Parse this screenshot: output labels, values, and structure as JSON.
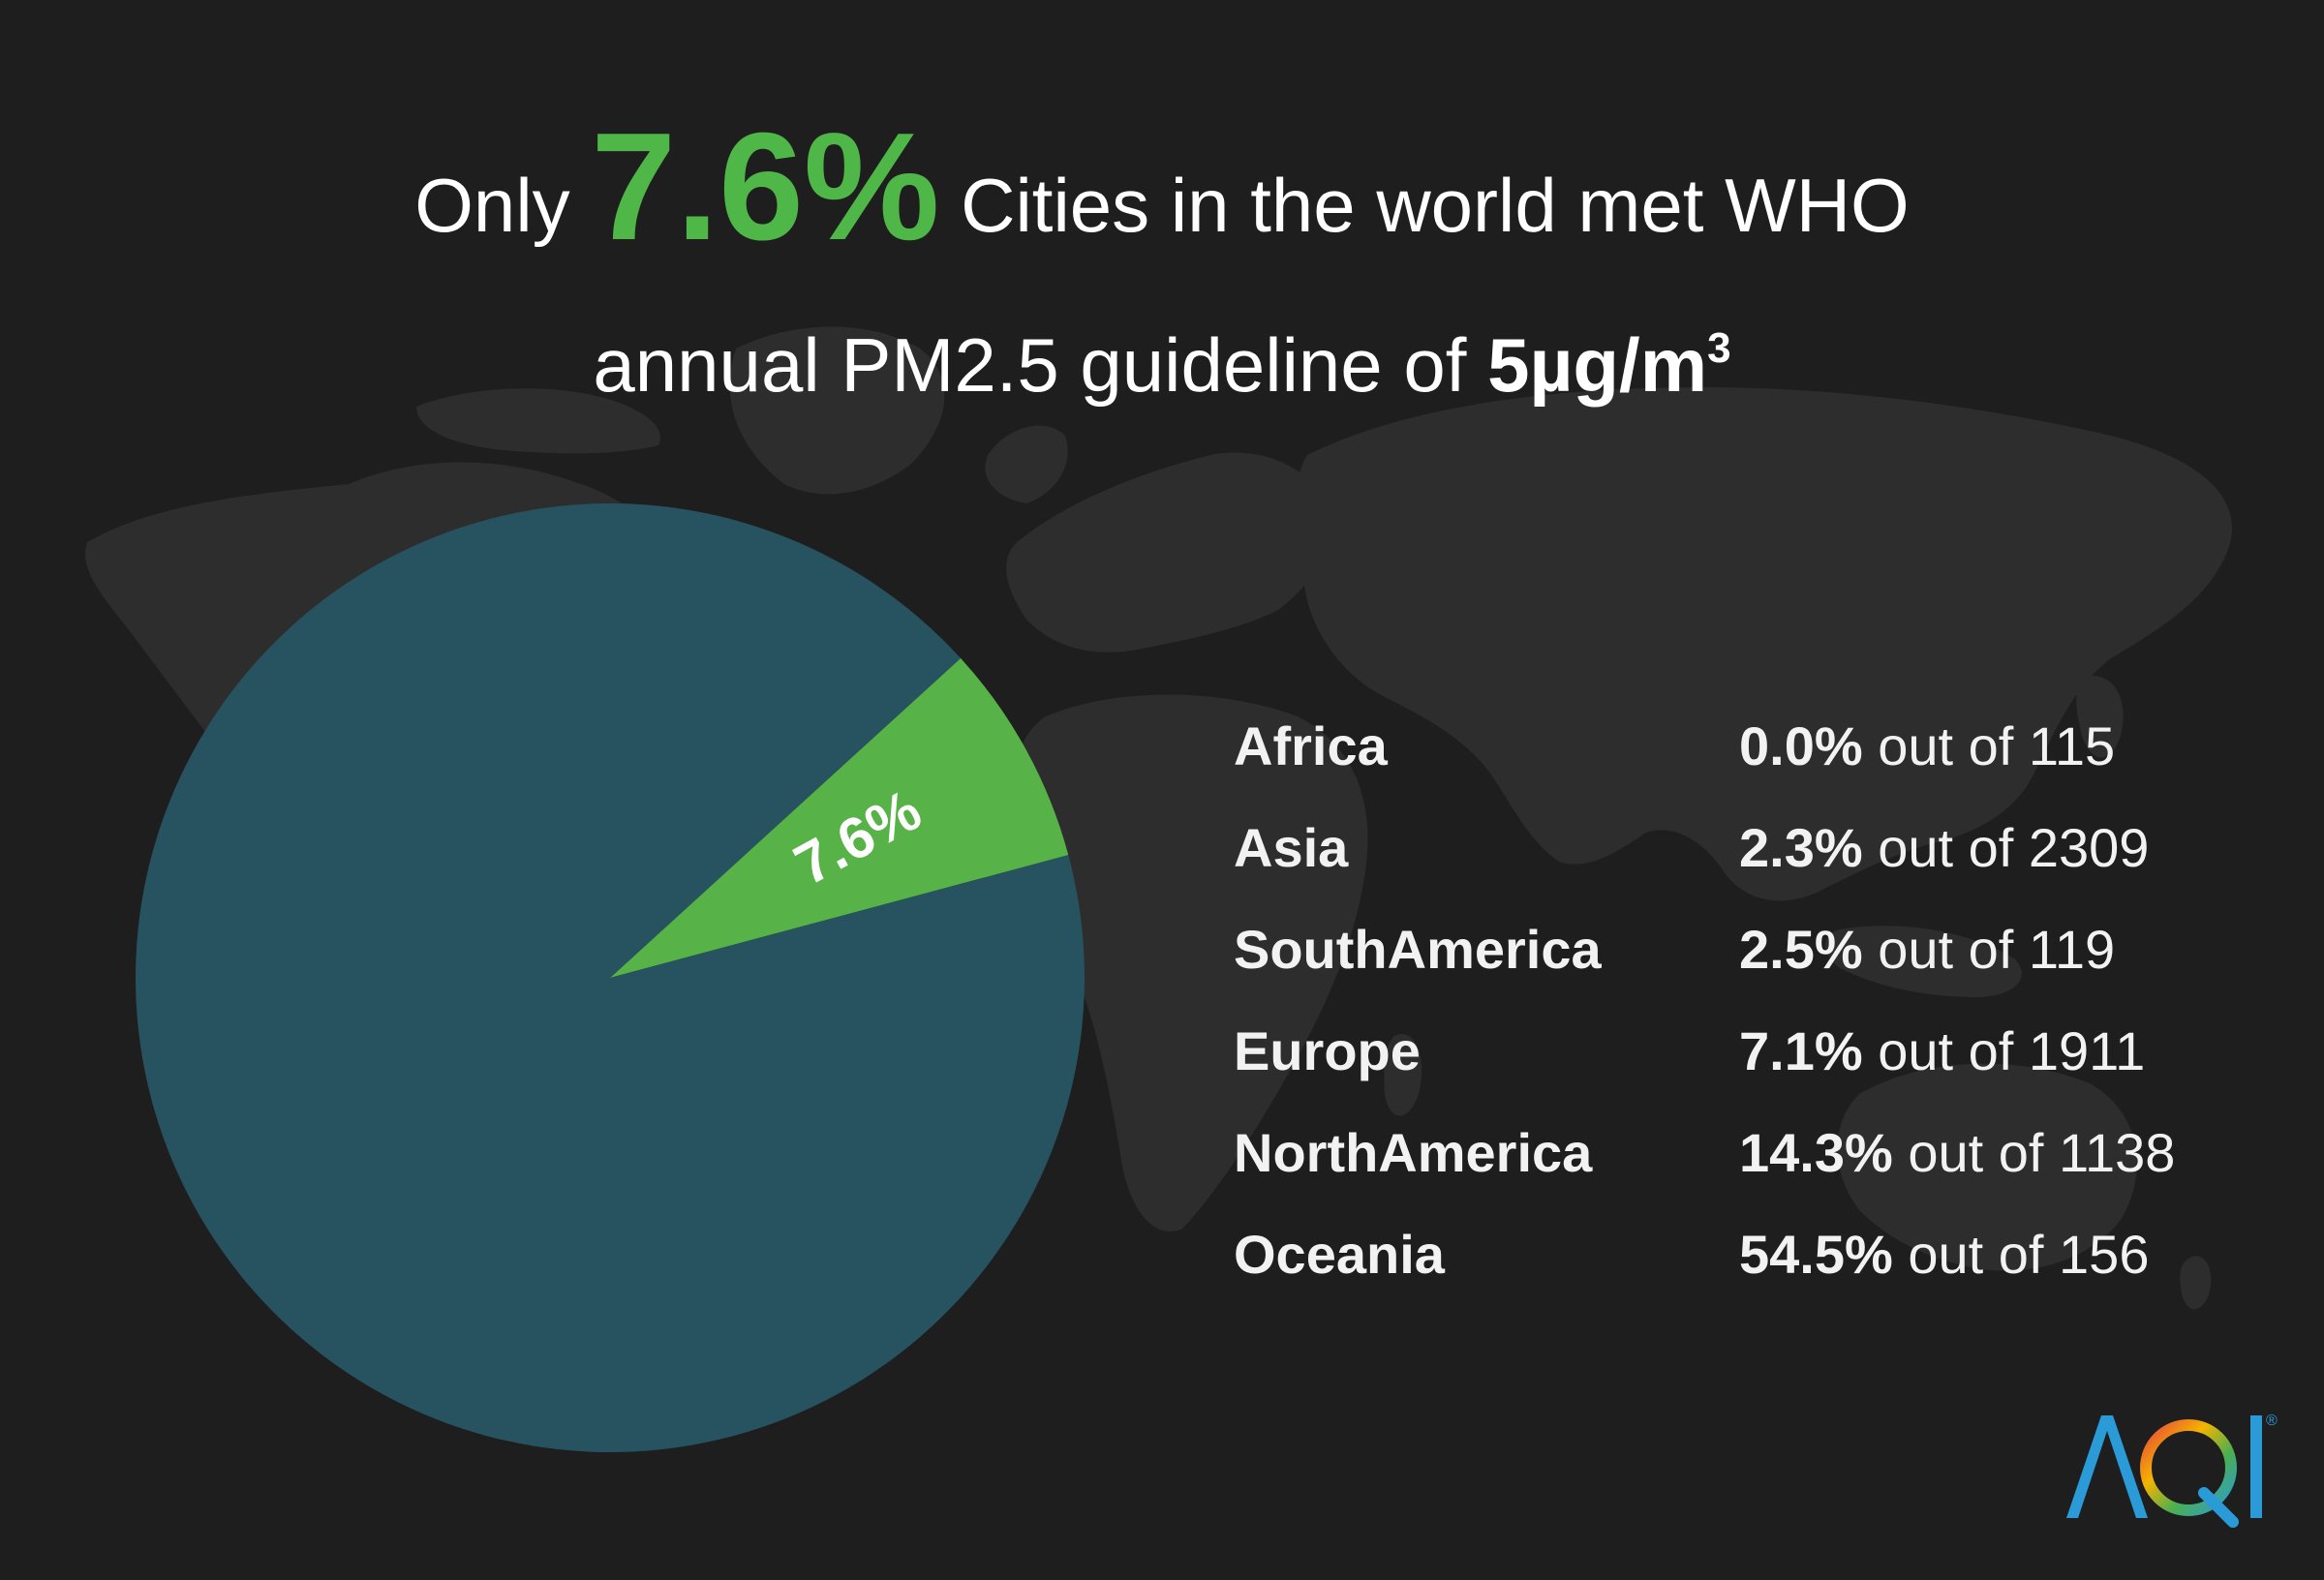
{
  "title": {
    "prefix": "Only",
    "highlight": "7.6%",
    "suffix": "Cities in the world met WHO",
    "line2_text": "annual PM2.5 guideline of",
    "line2_bold": "5µg/m",
    "line2_sup": "3"
  },
  "chart_data": {
    "type": "pie",
    "slices": [
      {
        "label": "7.6%",
        "value": 7.6,
        "color": "#57b348"
      },
      {
        "label": "",
        "value": 92.4,
        "color": "#27525f"
      }
    ],
    "title": "",
    "legend": "none"
  },
  "regions": [
    {
      "name": "Africa",
      "percent": "0.0%",
      "out_of": "out of 115"
    },
    {
      "name": "Asia",
      "percent": "2.3%",
      "out_of": "out of 2309"
    },
    {
      "name": "SouthAmerica",
      "percent": "2.5%",
      "out_of": "out of 119"
    },
    {
      "name": "Europe",
      "percent": "7.1%",
      "out_of": "out of 1911"
    },
    {
      "name": "NorthAmerica",
      "percent": "14.3%",
      "out_of": "out of 1138"
    },
    {
      "name": "Oceania",
      "percent": "54.5%",
      "out_of": "out of 156"
    }
  ],
  "logo": {
    "text": "AQI",
    "mark": "®"
  },
  "colors": {
    "background": "#1e1e1e",
    "accent": "#4fb648",
    "map": "#2e2e2e",
    "logo_blue": "#2a9bd6"
  }
}
